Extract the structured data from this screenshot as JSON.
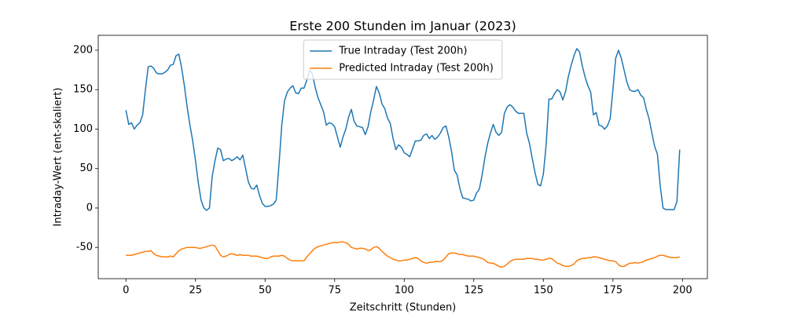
{
  "chart_data": {
    "type": "line",
    "title": "Erste 200 Stunden im Januar (2023)",
    "xlabel": "Zeitschritt (Stunden)",
    "ylabel": "Intraday-Wert (ent-skaliert)",
    "xlim": [
      -9.95,
      208.95
    ],
    "xticks": [
      0,
      25,
      50,
      75,
      100,
      125,
      150,
      175,
      200
    ],
    "ylim": [
      -89.6,
      218.9
    ],
    "yticks": [
      -50,
      0,
      50,
      100,
      150,
      200
    ],
    "legend": "upper center",
    "x": [
      0,
      1,
      2,
      3,
      4,
      5,
      6,
      7,
      8,
      9,
      10,
      11,
      12,
      13,
      14,
      15,
      16,
      17,
      18,
      19,
      20,
      21,
      22,
      23,
      24,
      25,
      26,
      27,
      28,
      29,
      30,
      31,
      32,
      33,
      34,
      35,
      36,
      37,
      38,
      39,
      40,
      41,
      42,
      43,
      44,
      45,
      46,
      47,
      48,
      49,
      50,
      51,
      52,
      53,
      54,
      55,
      56,
      57,
      58,
      59,
      60,
      61,
      62,
      63,
      64,
      65,
      66,
      67,
      68,
      69,
      70,
      71,
      72,
      73,
      74,
      75,
      76,
      77,
      78,
      79,
      80,
      81,
      82,
      83,
      84,
      85,
      86,
      87,
      88,
      89,
      90,
      91,
      92,
      93,
      94,
      95,
      96,
      97,
      98,
      99,
      100,
      101,
      102,
      103,
      104,
      105,
      106,
      107,
      108,
      109,
      110,
      111,
      112,
      113,
      114,
      115,
      116,
      117,
      118,
      119,
      120,
      121,
      122,
      123,
      124,
      125,
      126,
      127,
      128,
      129,
      130,
      131,
      132,
      133,
      134,
      135,
      136,
      137,
      138,
      139,
      140,
      141,
      142,
      143,
      144,
      145,
      146,
      147,
      148,
      149,
      150,
      151,
      152,
      153,
      154,
      155,
      156,
      157,
      158,
      159,
      160,
      161,
      162,
      163,
      164,
      165,
      166,
      167,
      168,
      169,
      170,
      171,
      172,
      173,
      174,
      175,
      176,
      177,
      178,
      179,
      180,
      181,
      182,
      183,
      184,
      185,
      186,
      187,
      188,
      189,
      190,
      191,
      192,
      193,
      194,
      195,
      196,
      197,
      198,
      199
    ],
    "series": [
      {
        "name": "True Intraday (Test 200h)",
        "color": "#1f77b4",
        "values": [
          124,
          106,
          108,
          100,
          105,
          108,
          118,
          150,
          179,
          180,
          177,
          171,
          170,
          170,
          172,
          175,
          181,
          182,
          193,
          195,
          178,
          155,
          128,
          105,
          85,
          60,
          32,
          10,
          0,
          -3,
          0,
          40,
          60,
          76,
          74,
          60,
          62,
          63,
          60,
          62,
          65,
          61,
          67,
          50,
          33,
          25,
          24,
          29,
          16,
          6,
          2,
          2,
          3,
          5,
          10,
          55,
          105,
          136,
          147,
          152,
          155,
          146,
          145,
          152,
          152,
          162,
          175,
          170,
          153,
          140,
          131,
          122,
          105,
          108,
          107,
          103,
          90,
          77,
          90,
          100,
          115,
          125,
          110,
          104,
          103,
          102,
          93,
          103,
          122,
          137,
          154,
          146,
          132,
          126,
          114,
          107,
          88,
          74,
          80,
          77,
          70,
          68,
          65,
          75,
          85,
          85,
          86,
          92,
          94,
          88,
          92,
          87,
          90,
          95,
          102,
          104,
          90,
          72,
          48,
          42,
          25,
          13,
          12,
          11,
          9,
          10,
          19,
          24,
          42,
          64,
          82,
          95,
          106,
          96,
          92,
          96,
          120,
          128,
          131,
          128,
          123,
          120,
          120,
          120,
          95,
          82,
          63,
          45,
          30,
          28,
          43,
          80,
          138,
          138,
          145,
          150,
          147,
          137,
          148,
          167,
          181,
          193,
          202,
          198,
          180,
          166,
          155,
          147,
          118,
          121,
          105,
          104,
          100,
          104,
          113,
          150,
          190,
          200,
          190,
          175,
          160,
          150,
          148,
          148,
          150,
          143,
          140,
          125,
          113,
          95,
          78,
          68,
          28,
          0,
          -2,
          -2,
          -2,
          -2,
          8,
          74
        ]
      },
      {
        "name": "Predicted Intraday (Test 200h)",
        "color": "#ff7f0e",
        "values": [
          -60,
          -60,
          -60,
          -59,
          -58,
          -57,
          -56,
          -55,
          -55,
          -54,
          -58,
          -60,
          -61,
          -62,
          -62,
          -62,
          -61,
          -62,
          -58,
          -54,
          -52,
          -51,
          -50,
          -50,
          -50,
          -50,
          -51,
          -51,
          -50,
          -49,
          -48,
          -47,
          -48,
          -54,
          -60,
          -62,
          -61,
          -59,
          -58,
          -59,
          -60,
          -59,
          -60,
          -60,
          -60,
          -61,
          -61,
          -61,
          -62,
          -63,
          -64,
          -64,
          -62,
          -61,
          -61,
          -61,
          -60,
          -61,
          -64,
          -66,
          -67,
          -67,
          -67,
          -67,
          -67,
          -62,
          -58,
          -54,
          -51,
          -49,
          -48,
          -47,
          -46,
          -45,
          -44,
          -44,
          -44,
          -43,
          -43,
          -44,
          -46,
          -50,
          -51,
          -52,
          -51,
          -51,
          -52,
          -54,
          -53,
          -50,
          -49,
          -51,
          -55,
          -58,
          -61,
          -63,
          -65,
          -66,
          -67,
          -67,
          -66,
          -66,
          -65,
          -64,
          -63,
          -64,
          -67,
          -69,
          -70,
          -69,
          -69,
          -68,
          -68,
          -68,
          -66,
          -62,
          -58,
          -57,
          -57,
          -58,
          -59,
          -59,
          -60,
          -61,
          -61,
          -61,
          -62,
          -63,
          -64,
          -66,
          -69,
          -70,
          -70,
          -72,
          -74,
          -75,
          -74,
          -71,
          -68,
          -66,
          -65,
          -65,
          -65,
          -65,
          -64,
          -64,
          -64,
          -65,
          -65,
          -66,
          -66,
          -65,
          -64,
          -64,
          -67,
          -70,
          -71,
          -73,
          -74,
          -74,
          -73,
          -71,
          -67,
          -65,
          -64,
          -64,
          -63,
          -63,
          -62,
          -62,
          -63,
          -64,
          -65,
          -66,
          -67,
          -67,
          -68,
          -72,
          -74,
          -74,
          -72,
          -70,
          -70,
          -69,
          -70,
          -69,
          -68,
          -66,
          -65,
          -64,
          -63,
          -61,
          -60,
          -60,
          -61,
          -62,
          -63,
          -63,
          -63,
          -62
        ]
      }
    ]
  }
}
